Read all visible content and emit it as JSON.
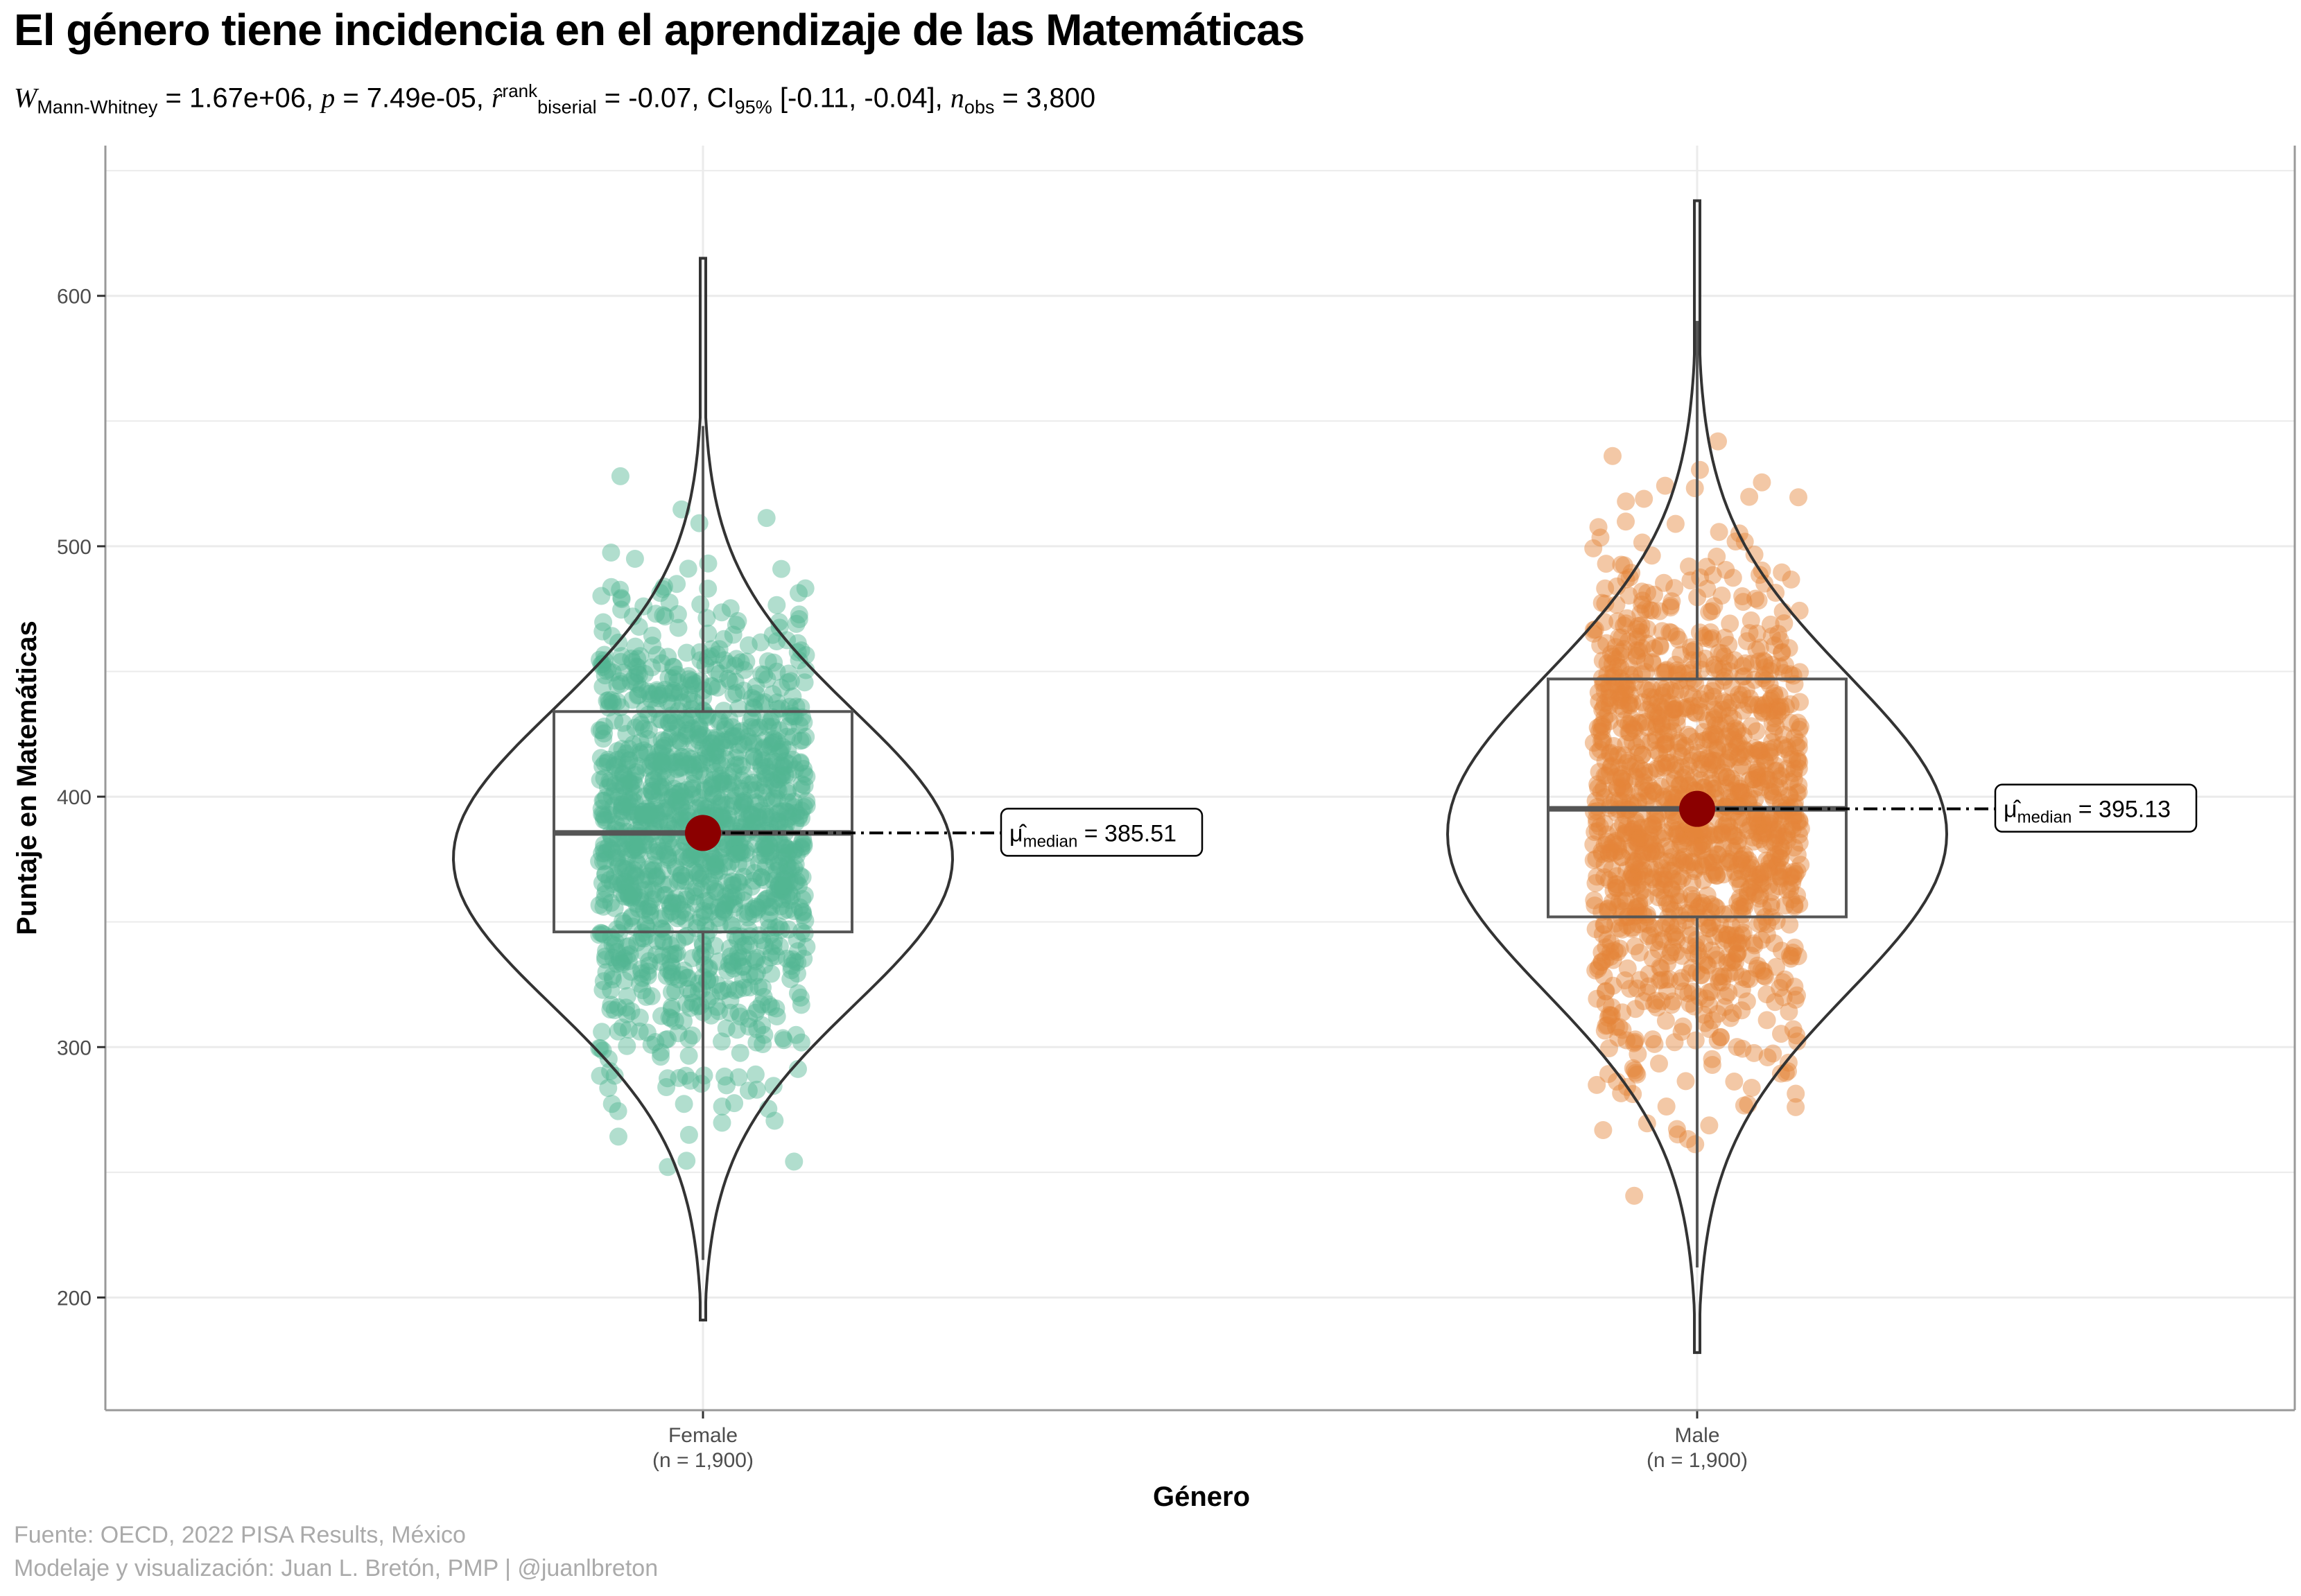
{
  "chart_data": {
    "type": "violin",
    "title": "El género tiene incidencia en el aprendizaje de las Matemáticas",
    "subtitle": {
      "w_symbol": "W",
      "w_sub": "Mann-Whitney",
      "w_value": "= 1.67e+06,",
      "p_symbol": "p",
      "p_value": "= 7.49e-05,",
      "r_symbol": "r̂",
      "r_sup": "rank",
      "r_sub": "biserial",
      "r_value": "= -0.07,",
      "ci_label": "CI",
      "ci_sub": "95%",
      "ci_value": "[-0.11, -0.04],",
      "n_symbol": "n",
      "n_sub": "obs",
      "n_value": "= 3,800"
    },
    "xlabel": "Género",
    "ylabel": "Puntaje en Matemáticas",
    "ylim": [
      155,
      660
    ],
    "yticks": [
      "200",
      "300",
      "400",
      "500",
      "600"
    ],
    "grid": true,
    "groups": [
      {
        "name": "Female",
        "n_label": "(n = 1,900)",
        "color": "#52b592",
        "box": {
          "q1": 346,
          "median": 385.51,
          "q3": 434,
          "whisker_low": 215,
          "whisker_high": 548
        },
        "range": [
          191,
          615
        ],
        "median_label": "= 385.51"
      },
      {
        "name": "Male",
        "n_label": "(n = 1,900)",
        "color": "#e5843a",
        "box": {
          "q1": 352,
          "median": 395.13,
          "q3": 447,
          "whisker_low": 212,
          "whisker_high": 590
        },
        "range": [
          178,
          638
        ],
        "median_label": "= 395.13"
      }
    ],
    "median_label_prefix": "μ̂",
    "median_label_sub": "median",
    "median_color": "#8b0000"
  },
  "caption": {
    "line1": "Fuente: OECD, 2022 PISA Results, México",
    "line2": "Modelaje y visualización: Juan L. Bretón, PMP | @juanlbreton"
  }
}
